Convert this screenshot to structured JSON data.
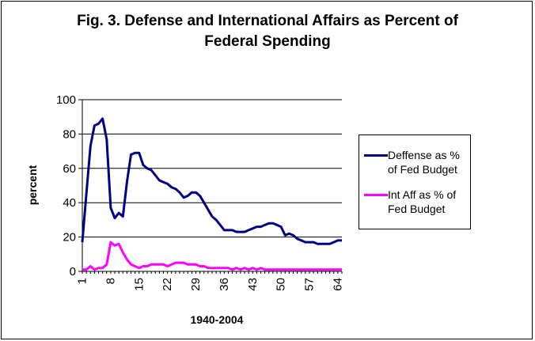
{
  "colors": {
    "defense": "#000080",
    "intaff": "#ff00ff",
    "grid": "#000000",
    "background": "#ffffff"
  },
  "chart_data": {
    "type": "line",
    "title_lines": [
      "Fig. 3. Defense and International Affairs as Percent of",
      "Federal Spending"
    ],
    "xlabel": "1940-2004",
    "ylabel": "percent",
    "ylim": [
      0,
      100
    ],
    "yticks": [
      0,
      20,
      40,
      60,
      80,
      100
    ],
    "xticks": [
      1,
      8,
      15,
      22,
      29,
      36,
      43,
      50,
      57,
      64
    ],
    "xlim": [
      1,
      65
    ],
    "grid": "horizontal",
    "legend_position": "right",
    "x": [
      1,
      2,
      3,
      4,
      5,
      6,
      7,
      8,
      9,
      10,
      11,
      12,
      13,
      14,
      15,
      16,
      17,
      18,
      19,
      20,
      21,
      22,
      23,
      24,
      25,
      26,
      27,
      28,
      29,
      30,
      31,
      32,
      33,
      34,
      35,
      36,
      37,
      38,
      39,
      40,
      41,
      42,
      43,
      44,
      45,
      46,
      47,
      48,
      49,
      50,
      51,
      52,
      53,
      54,
      55,
      56,
      57,
      58,
      59,
      60,
      61,
      62,
      63,
      64,
      65
    ],
    "series": [
      {
        "name": "Deffense as % of Fed Budget",
        "values": [
          17,
          45,
          73,
          85,
          86,
          89,
          77,
          37,
          31,
          34,
          32,
          52,
          68,
          69,
          69,
          62,
          60,
          59,
          56,
          53,
          52,
          51,
          49,
          48,
          46,
          43,
          44,
          46,
          46,
          44,
          40,
          36,
          32,
          30,
          27,
          24,
          24,
          24,
          23,
          23,
          23,
          24,
          25,
          26,
          26,
          27,
          28,
          28,
          27,
          26,
          21,
          22,
          21,
          19,
          18,
          17,
          17,
          17,
          16,
          16,
          16,
          16,
          17,
          18,
          18
        ]
      },
      {
        "name": "Int Aff as % of Fed Budget",
        "values": [
          1,
          1,
          3,
          1,
          2,
          2,
          4,
          17,
          15,
          16,
          11,
          7,
          4,
          3,
          2,
          3,
          3,
          4,
          4,
          4,
          4,
          3,
          4,
          5,
          5,
          5,
          4,
          4,
          4,
          3,
          3,
          2,
          2,
          2,
          2,
          2,
          2,
          1,
          2,
          1,
          2,
          1,
          2,
          1,
          2,
          1,
          1,
          1,
          1,
          1,
          1,
          1,
          1,
          1,
          1,
          1,
          1,
          1,
          1,
          1,
          1,
          1,
          1,
          1,
          1
        ]
      }
    ]
  }
}
